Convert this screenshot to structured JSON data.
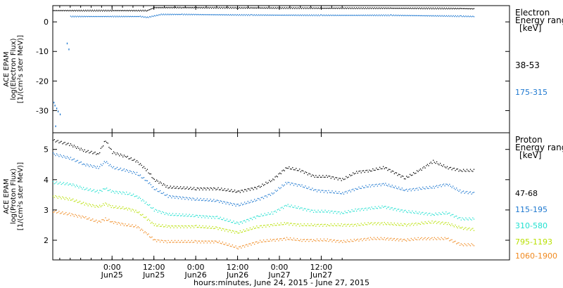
{
  "chart_data": [
    {
      "type": "scatter",
      "panel": "electron",
      "ylabel_lines": [
        "ACE EPAM",
        "log(Electron Flux)",
        "[1/(cm²s ster MeV)]"
      ],
      "yticks": [
        0,
        -10,
        -20,
        -30
      ],
      "ylim": [
        -37.5,
        5.5
      ],
      "xlim": [
        -17,
        114
      ],
      "legend_title_lines": [
        "Electron",
        "Energy range",
        "[keV]"
      ],
      "legend_placement": "right",
      "grid": false,
      "series": [
        {
          "name": "38-53",
          "color": "#000000",
          "points": [
            [
              -17,
              3.8
            ],
            [
              0,
              3.8
            ],
            [
              10,
              3.8
            ],
            [
              12,
              4.8
            ],
            [
              20,
              4.8
            ],
            [
              40,
              4.7
            ],
            [
              60,
              4.6
            ],
            [
              80,
              4.6
            ],
            [
              100,
              4.5
            ],
            [
              104,
              4.4
            ]
          ]
        },
        {
          "name": "175-315",
          "color": "#1e78d0",
          "points": [
            [
              -12,
              1.8
            ],
            [
              0,
              1.8
            ],
            [
              8,
              1.8
            ],
            [
              10,
              1.5
            ],
            [
              14,
              2.5
            ],
            [
              20,
              2.5
            ],
            [
              40,
              2.3
            ],
            [
              60,
              2.2
            ],
            [
              80,
              2.2
            ],
            [
              100,
              1.9
            ],
            [
              104,
              1.8
            ]
          ]
        }
      ],
      "scattered_early_points": [
        [
          -16.8,
          -27
        ],
        [
          -16.5,
          -28
        ],
        [
          -16,
          -29
        ],
        [
          -15.6,
          -30
        ],
        [
          -15,
          -31
        ],
        [
          -16.3,
          -35
        ],
        [
          -13,
          -7
        ],
        [
          -12.5,
          -9
        ]
      ]
    },
    {
      "type": "scatter",
      "panel": "proton",
      "ylabel_lines": [
        "ACE EPAM",
        "log(Proton Flux)",
        "[1/(cm²s ster MeV)]"
      ],
      "yticks": [
        2,
        3,
        4,
        5
      ],
      "ylim": [
        1.35,
        5.55
      ],
      "xlim": [
        -17,
        114
      ],
      "legend_title_lines": [
        "Proton",
        "Energy range",
        "[keV]"
      ],
      "legend_placement": "right",
      "grid": false,
      "series": [
        {
          "name": "47-68",
          "color": "#000000",
          "points": [
            [
              -17,
              5.3
            ],
            [
              -12,
              5.15
            ],
            [
              -8,
              4.95
            ],
            [
              -4,
              4.85
            ],
            [
              -2,
              5.3
            ],
            [
              0,
              4.9
            ],
            [
              4,
              4.75
            ],
            [
              7,
              4.6
            ],
            [
              10,
              4.3
            ],
            [
              12,
              4.0
            ],
            [
              16,
              3.75
            ],
            [
              24,
              3.7
            ],
            [
              30,
              3.7
            ],
            [
              36,
              3.6
            ],
            [
              42,
              3.75
            ],
            [
              46,
              4.0
            ],
            [
              50,
              4.4
            ],
            [
              54,
              4.3
            ],
            [
              58,
              4.1
            ],
            [
              62,
              4.1
            ],
            [
              66,
              4.0
            ],
            [
              70,
              4.25
            ],
            [
              74,
              4.3
            ],
            [
              78,
              4.4
            ],
            [
              84,
              4.05
            ],
            [
              88,
              4.3
            ],
            [
              92,
              4.6
            ],
            [
              96,
              4.4
            ],
            [
              100,
              4.3
            ],
            [
              104,
              4.3
            ]
          ]
        },
        {
          "name": "115-195",
          "color": "#1e78d0",
          "points": [
            [
              -17,
              4.85
            ],
            [
              -12,
              4.7
            ],
            [
              -8,
              4.5
            ],
            [
              -4,
              4.4
            ],
            [
              -2,
              4.6
            ],
            [
              0,
              4.4
            ],
            [
              4,
              4.3
            ],
            [
              7,
              4.2
            ],
            [
              10,
              3.95
            ],
            [
              12,
              3.7
            ],
            [
              16,
              3.45
            ],
            [
              24,
              3.35
            ],
            [
              30,
              3.3
            ],
            [
              36,
              3.15
            ],
            [
              42,
              3.35
            ],
            [
              46,
              3.55
            ],
            [
              50,
              3.9
            ],
            [
              54,
              3.8
            ],
            [
              58,
              3.65
            ],
            [
              62,
              3.6
            ],
            [
              66,
              3.55
            ],
            [
              70,
              3.7
            ],
            [
              74,
              3.8
            ],
            [
              78,
              3.85
            ],
            [
              84,
              3.65
            ],
            [
              88,
              3.7
            ],
            [
              92,
              3.75
            ],
            [
              96,
              3.85
            ],
            [
              100,
              3.6
            ],
            [
              104,
              3.55
            ]
          ]
        },
        {
          "name": "310-580",
          "color": "#20e0d0",
          "points": [
            [
              -17,
              3.9
            ],
            [
              -12,
              3.85
            ],
            [
              -8,
              3.7
            ],
            [
              -4,
              3.6
            ],
            [
              -2,
              3.7
            ],
            [
              0,
              3.6
            ],
            [
              4,
              3.55
            ],
            [
              7,
              3.45
            ],
            [
              10,
              3.2
            ],
            [
              12,
              3.0
            ],
            [
              16,
              2.85
            ],
            [
              24,
              2.8
            ],
            [
              30,
              2.75
            ],
            [
              36,
              2.55
            ],
            [
              42,
              2.8
            ],
            [
              46,
              2.9
            ],
            [
              50,
              3.15
            ],
            [
              54,
              3.05
            ],
            [
              58,
              2.95
            ],
            [
              62,
              2.95
            ],
            [
              66,
              2.9
            ],
            [
              70,
              3.0
            ],
            [
              74,
              3.05
            ],
            [
              78,
              3.1
            ],
            [
              84,
              2.95
            ],
            [
              88,
              2.9
            ],
            [
              92,
              2.85
            ],
            [
              96,
              2.9
            ],
            [
              100,
              2.7
            ],
            [
              104,
              2.7
            ]
          ]
        },
        {
          "name": "795-1193",
          "color": "#b8e000",
          "points": [
            [
              -17,
              3.45
            ],
            [
              -12,
              3.35
            ],
            [
              -8,
              3.2
            ],
            [
              -4,
              3.1
            ],
            [
              -2,
              3.2
            ],
            [
              0,
              3.1
            ],
            [
              4,
              3.05
            ],
            [
              7,
              2.95
            ],
            [
              10,
              2.7
            ],
            [
              12,
              2.5
            ],
            [
              16,
              2.45
            ],
            [
              24,
              2.45
            ],
            [
              30,
              2.4
            ],
            [
              36,
              2.25
            ],
            [
              42,
              2.45
            ],
            [
              46,
              2.5
            ],
            [
              50,
              2.55
            ],
            [
              54,
              2.5
            ],
            [
              58,
              2.5
            ],
            [
              62,
              2.5
            ],
            [
              66,
              2.5
            ],
            [
              70,
              2.5
            ],
            [
              74,
              2.55
            ],
            [
              78,
              2.55
            ],
            [
              84,
              2.5
            ],
            [
              88,
              2.55
            ],
            [
              92,
              2.6
            ],
            [
              96,
              2.55
            ],
            [
              100,
              2.4
            ],
            [
              104,
              2.35
            ]
          ]
        },
        {
          "name": "1060-1900",
          "color": "#f08a20",
          "points": [
            [
              -17,
              2.95
            ],
            [
              -12,
              2.85
            ],
            [
              -8,
              2.75
            ],
            [
              -4,
              2.6
            ],
            [
              -2,
              2.7
            ],
            [
              0,
              2.6
            ],
            [
              4,
              2.5
            ],
            [
              7,
              2.45
            ],
            [
              10,
              2.2
            ],
            [
              12,
              2.0
            ],
            [
              16,
              1.95
            ],
            [
              24,
              1.95
            ],
            [
              30,
              1.95
            ],
            [
              36,
              1.75
            ],
            [
              42,
              1.95
            ],
            [
              46,
              2.0
            ],
            [
              50,
              2.05
            ],
            [
              54,
              2.0
            ],
            [
              58,
              2.0
            ],
            [
              62,
              2.0
            ],
            [
              66,
              1.95
            ],
            [
              70,
              2.0
            ],
            [
              74,
              2.05
            ],
            [
              78,
              2.05
            ],
            [
              84,
              2.0
            ],
            [
              88,
              2.05
            ],
            [
              92,
              2.05
            ],
            [
              96,
              2.05
            ],
            [
              100,
              1.85
            ],
            [
              104,
              1.85
            ]
          ]
        }
      ]
    }
  ],
  "x_axis": {
    "ticks": [
      {
        "x": 0,
        "time": "0:00",
        "date": "Jun25"
      },
      {
        "x": 12,
        "time": "12:00",
        "date": "Jun25"
      },
      {
        "x": 24,
        "time": "0:00",
        "date": "Jun26"
      },
      {
        "x": 36,
        "time": "12:00",
        "date": "Jun26"
      },
      {
        "x": 48,
        "time": "0:00",
        "date": "Jun27"
      },
      {
        "x": 60,
        "time": "12:00",
        "date": "Jun27"
      }
    ],
    "label": "hours:minutes, June 24, 2015 - June 27, 2015"
  }
}
